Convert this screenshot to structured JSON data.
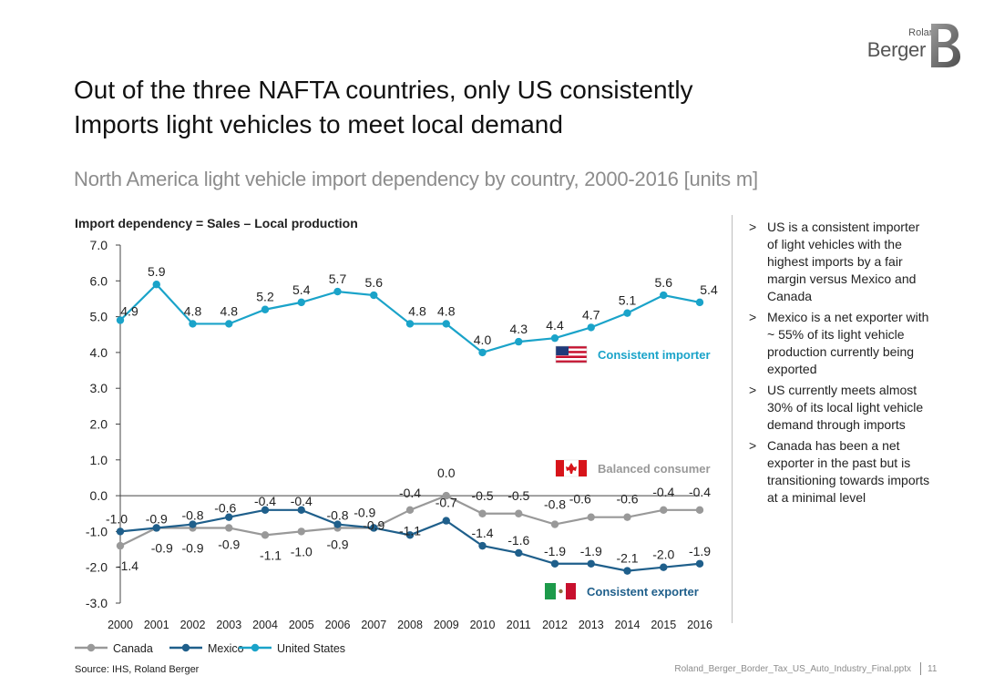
{
  "brand": {
    "logo_top": "Roland",
    "logo_bottom": "Berger"
  },
  "title": {
    "line1": "Out of the three NAFTA countries, only US consistently",
    "line2": "Imports light vehicles to meet local demand"
  },
  "subtitle": "North America light vehicle import dependency by country, 2000-2016 [units m]",
  "chart_data": {
    "type": "line",
    "title": "Import dependency = Sales – Local production",
    "xlabel": "",
    "ylabel": "",
    "x": [
      "2000",
      "2001",
      "2002",
      "2003",
      "2004",
      "2005",
      "2006",
      "2007",
      "2008",
      "2009",
      "2010",
      "2011",
      "2012",
      "2013",
      "2014",
      "2015",
      "2016"
    ],
    "ylim": [
      -3.0,
      7.0
    ],
    "yticks": [
      "7.0",
      "6.0",
      "5.0",
      "4.0",
      "3.0",
      "2.0",
      "1.0",
      "0.0",
      "-1.0",
      "-2.0",
      "-3.0"
    ],
    "legend_position": "bottom-left",
    "series": [
      {
        "name": "Canada",
        "color": "#999999",
        "values": [
          -1.4,
          -0.9,
          -0.9,
          -0.9,
          -1.1,
          -1.0,
          -0.9,
          -0.9,
          -0.4,
          0.0,
          -0.5,
          -0.5,
          -0.8,
          -0.6,
          -0.6,
          -0.4,
          -0.4
        ],
        "labels": [
          "-1.4",
          "-0.9",
          "-0.9",
          "-0.9",
          "-1.1",
          "-1.0",
          "-0.9",
          "-0.9",
          "-0.4",
          "0.0",
          "-0.5",
          "-0.5",
          "-0.8",
          "-0.6",
          "-0.6",
          "-0.4",
          "-0.4"
        ]
      },
      {
        "name": "Mexico",
        "color": "#1f5f8b",
        "values": [
          -1.0,
          -0.9,
          -0.8,
          -0.6,
          -0.4,
          -0.4,
          -0.8,
          -0.9,
          -1.1,
          -0.7,
          -1.4,
          -1.6,
          -1.9,
          -1.9,
          -2.1,
          -2.0,
          -1.9
        ],
        "labels": [
          "-1.0",
          "-0.9",
          "-0.8",
          "-0.6",
          "-0.4",
          "-0.4",
          "-0.8",
          "-0.9",
          "-1.1",
          "-0.7",
          "-1.4",
          "-1.6",
          "-1.9",
          "-1.9",
          "-2.1",
          "-2.0",
          "-1.9"
        ]
      },
      {
        "name": "United States",
        "color": "#1aa3c9",
        "values": [
          4.9,
          5.9,
          4.8,
          4.8,
          5.2,
          5.4,
          5.7,
          5.6,
          4.8,
          4.8,
          4.0,
          4.3,
          4.4,
          4.7,
          5.1,
          5.6,
          5.4
        ],
        "labels": [
          "4.9",
          "5.9",
          "4.8",
          "4.8",
          "5.2",
          "5.4",
          "5.7",
          "5.6",
          "4.8",
          "4.8",
          "4.0",
          "4.3",
          "4.4",
          "4.7",
          "5.1",
          "5.6",
          "5.4"
        ]
      }
    ],
    "annotations": [
      {
        "text": "Consistent importer",
        "flag": "us-flag-icon",
        "color": "#1aa3c9"
      },
      {
        "text": "Balanced consumer",
        "flag": "canada-flag-icon",
        "color": "#999999"
      },
      {
        "text": "Consistent  exporter",
        "flag": "mexico-flag-icon",
        "color": "#1f5f8b"
      }
    ]
  },
  "bullets": [
    "US is a consistent importer of light vehicles with the highest imports by a fair margin versus Mexico and Canada",
    "Mexico is a net exporter with ~ 55% of its light vehicle production currently being exported",
    "US currently meets almost 30% of its local light vehicle demand through imports",
    "Canada has been a net exporter in the past but is transitioning towards imports at a minimal level"
  ],
  "bullet_marker": ">",
  "footer": {
    "source": "Source: IHS, Roland Berger",
    "file": "Roland_Berger_Border_Tax_US_Auto_Industry_Final.pptx",
    "page": "11"
  },
  "colors": {
    "us": "#1aa3c9",
    "mexico": "#1f5f8b",
    "canada": "#999999",
    "text": "#222222",
    "subtitle": "#8c8c8c"
  }
}
